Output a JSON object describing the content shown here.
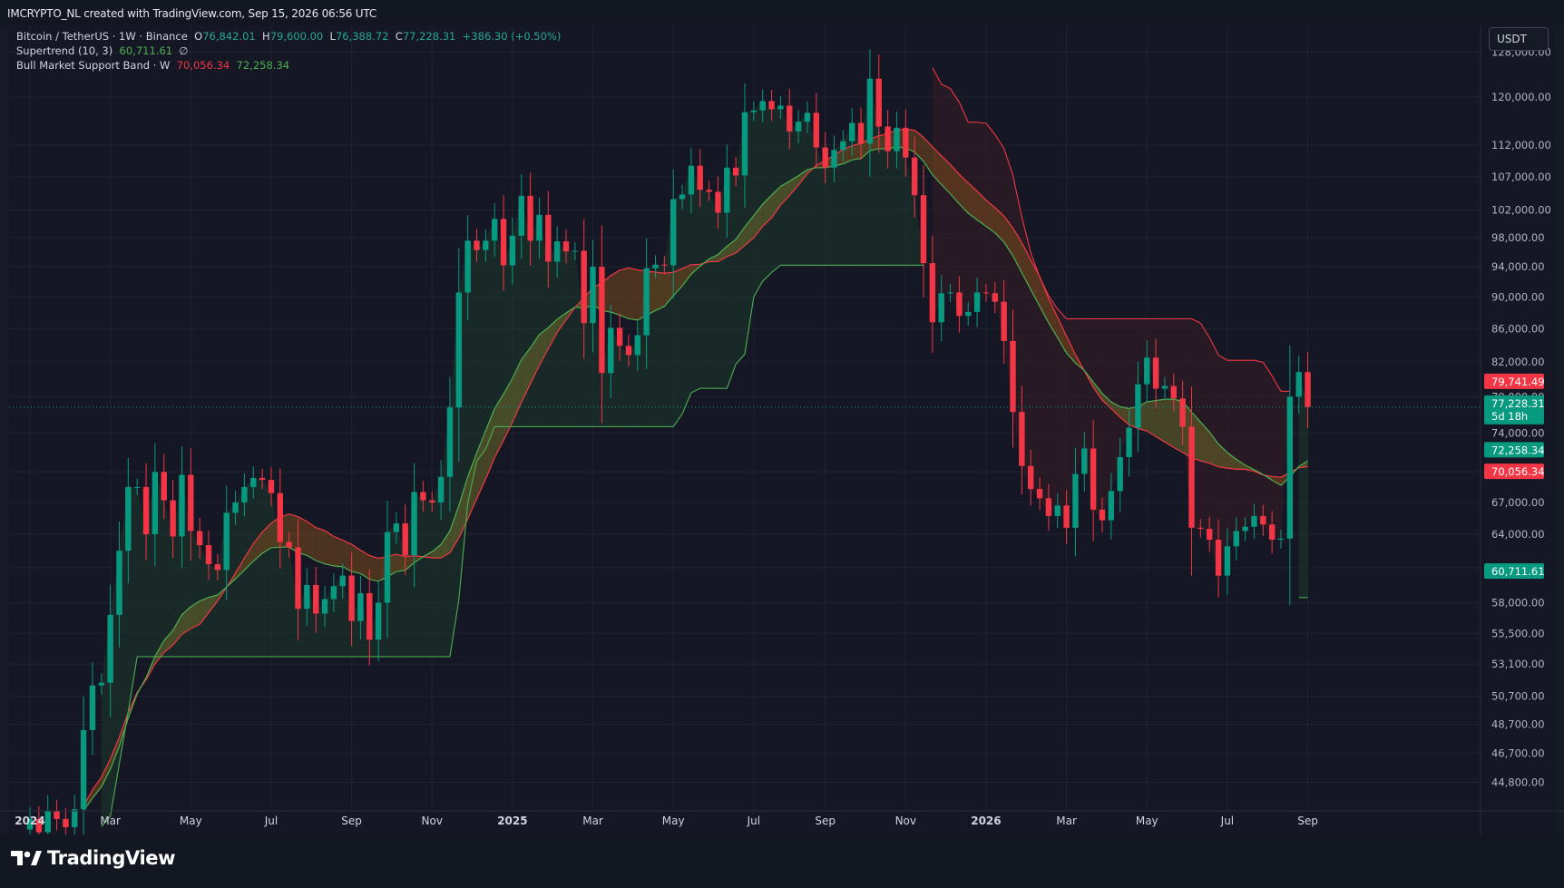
{
  "header": {
    "watermark": "IMCRYPTO_NL created with TradingView.com, Sep 15, 2026 06:56 UTC"
  },
  "legend": {
    "symbol": "Bitcoin / TetherUS · 1W · Binance",
    "o_label": "O",
    "o_value": "76,842.01",
    "h_label": "H",
    "h_value": "79,600.00",
    "l_label": "L",
    "l_value": "76,388.72",
    "c_label": "C",
    "c_value": "77,228.31",
    "change": "+386.30 (+0.50%)",
    "supertrend_label": "Supertrend (10, 3)",
    "supertrend_value": "60,711.61",
    "supertrend_extra": "∅",
    "bmsb_label": "Bull Market Support Band · W",
    "bmsb_value1": "70,056.34",
    "bmsb_value2": "72,258.34"
  },
  "currency_button": "USDT",
  "footer": {
    "logo_text": "TradingView"
  },
  "colors": {
    "up": "#089981",
    "down": "#f23645",
    "sma": "#f23645",
    "ema": "#4caf50",
    "bg": "#161a25"
  },
  "chart_data": {
    "type": "candlestick",
    "y_scale": "log",
    "y_range": [
      43000,
      133000
    ],
    "y_ticks": [
      44800,
      46700,
      48700,
      50700,
      53100,
      55500,
      58000,
      61000,
      64000,
      67000,
      70000,
      74000,
      78000,
      82000,
      86000,
      90000,
      94000,
      98000,
      102000,
      107000,
      112000,
      120000,
      128000
    ],
    "y_tick_labels": [
      "44,800.00",
      "46,700.00",
      "48,700.00",
      "50,700.00",
      "53,100.00",
      "55,500.00",
      "58,000.00",
      "61,000.00",
      "64,000.00",
      "67,000.00",
      "70,000.00",
      "74,000.00",
      "78,000.00",
      "82,000.00",
      "86,000.00",
      "90,000.00",
      "94,000.00",
      "98,000.00",
      "102,000.00",
      "107,000.00",
      "112,000.00",
      "120,000.00",
      "128,000.00"
    ],
    "x_labels": [
      {
        "week": 0,
        "text": "2024",
        "bold": true
      },
      {
        "week": 9,
        "text": "Mar"
      },
      {
        "week": 18,
        "text": "May"
      },
      {
        "week": 27,
        "text": "Jul"
      },
      {
        "week": 36,
        "text": "Sep"
      },
      {
        "week": 45,
        "text": "Nov"
      },
      {
        "week": 54,
        "text": "2025",
        "bold": true
      },
      {
        "week": 63,
        "text": "Mar"
      },
      {
        "week": 72,
        "text": "May"
      },
      {
        "week": 81,
        "text": "Jul"
      },
      {
        "week": 89,
        "text": "Sep"
      },
      {
        "week": 98,
        "text": "Nov"
      },
      {
        "week": 107,
        "text": "2026",
        "bold": true
      },
      {
        "week": 116,
        "text": "Mar"
      },
      {
        "week": 125,
        "text": "May"
      },
      {
        "week": 134,
        "text": "Jul"
      },
      {
        "week": 143,
        "text": "Sep"
      }
    ],
    "closes": [
      42500,
      41700,
      43000,
      42500,
      42000,
      43100,
      48300,
      51500,
      51700,
      57000,
      62500,
      68500,
      68500,
      64000,
      70000,
      67200,
      63800,
      69700,
      64300,
      63000,
      61300,
      60800,
      66000,
      67000,
      68500,
      69400,
      69200,
      67900,
      63300,
      62800,
      57500,
      59500,
      57100,
      58300,
      59400,
      60300,
      56500,
      58800,
      55000,
      58000,
      64200,
      65000,
      62100,
      68000,
      67200,
      67000,
      69500,
      76800,
      90600,
      97600,
      96300,
      97600,
      100700,
      94200,
      98300,
      104100,
      97600,
      101300,
      94700,
      97500,
      96100,
      96200,
      86700,
      94000,
      80700,
      86100,
      83900,
      82800,
      85200,
      93800,
      94300,
      94200,
      103600,
      104300,
      108700,
      105000,
      104700,
      101600,
      108400,
      107200,
      117400,
      117700,
      119300,
      117900,
      118500,
      114200,
      115800,
      117300,
      111600,
      108400,
      111200,
      112600,
      115600,
      112200,
      123200,
      115000,
      111000,
      114800,
      110000,
      104200,
      94500,
      86800,
      90500,
      90600,
      87600,
      88100,
      90600,
      90500,
      89400,
      84500,
      76300,
      70600,
      68300,
      67400,
      65700,
      66700,
      64600,
      69800,
      72400,
      66300,
      65300,
      68100,
      71500,
      74600,
      79400,
      82500,
      78900,
      79200,
      77800,
      74700,
      64600,
      64500,
      63500,
      60300,
      62900,
      64300,
      64700,
      65700,
      64900,
      63500,
      63600,
      78000,
      80800,
      76842
    ],
    "opens_note": "open = previous close",
    "current_price": {
      "value": "77,228.31",
      "countdown": "5d 18h"
    },
    "price_tags": [
      {
        "value": "79,741.49",
        "color": "#f23645"
      },
      {
        "value": "72,258.34",
        "color": "#089981"
      },
      {
        "value": "70,056.34",
        "color": "#f23645"
      },
      {
        "value": "60,711.61",
        "color": "#089981"
      }
    ]
  }
}
